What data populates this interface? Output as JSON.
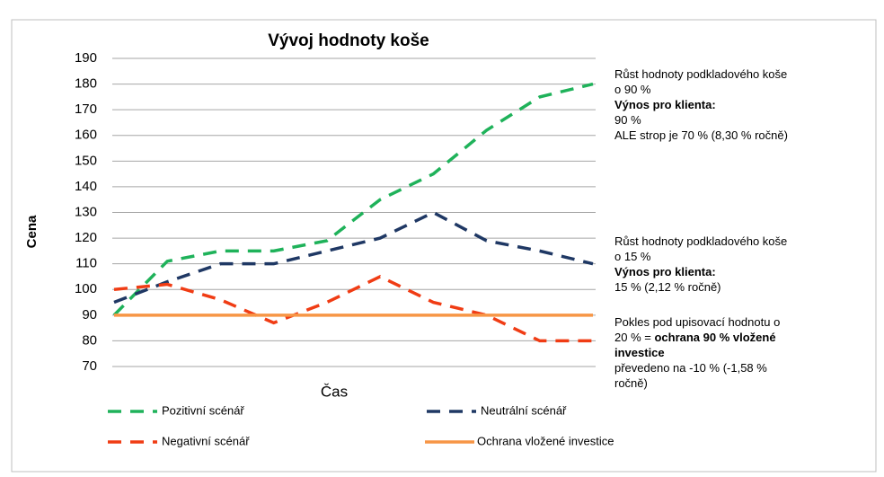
{
  "chart_data": {
    "type": "line",
    "title": "Vývoj hodnoty koše",
    "ylabel": "Cena",
    "xlabel": "Čas",
    "categories": [
      null,
      null,
      null,
      null,
      null,
      null,
      null,
      null,
      null,
      null
    ],
    "ylim": [
      70,
      190
    ],
    "yticks": [
      70,
      80,
      90,
      100,
      110,
      120,
      130,
      140,
      150,
      160,
      170,
      180,
      190
    ],
    "grid": true,
    "series": [
      {
        "name": "Pozitivní scénář",
        "color": "#1fb25a",
        "dashed": true,
        "values": [
          90,
          111,
          115,
          115,
          119,
          135,
          145,
          162,
          175,
          180
        ]
      },
      {
        "name": "Neutrální scénář",
        "color": "#1f3864",
        "dashed": true,
        "values": [
          95,
          103,
          110,
          110,
          115,
          120,
          130,
          119,
          115,
          110
        ]
      },
      {
        "name": "Negativní scénář",
        "color": "#f03c14",
        "dashed": true,
        "values": [
          100,
          102,
          96,
          87,
          95,
          105,
          95,
          90,
          80,
          80
        ]
      },
      {
        "name": "Ochrana vložené investice",
        "color": "#f79646",
        "dashed": false,
        "values": [
          90,
          90,
          90,
          90,
          90,
          90,
          90,
          90,
          90,
          90
        ]
      }
    ],
    "annotations": [
      [
        [
          {
            "text": "Růst hodnoty podkladového koše",
            "bold": false
          }
        ],
        [
          {
            "text": "o 90 %",
            "bold": false
          }
        ],
        [
          {
            "text": "Výnos pro klienta:",
            "bold": true
          }
        ],
        [
          {
            "text": "90 %",
            "bold": false
          }
        ],
        [
          {
            "text": "ALE strop je 70 % (8,30 % ročně)",
            "bold": false
          }
        ]
      ],
      [
        [
          {
            "text": "Růst hodnoty podkladového koše",
            "bold": false
          }
        ],
        [
          {
            "text": "o 15 %",
            "bold": false
          }
        ],
        [
          {
            "text": "Výnos pro klienta:",
            "bold": true
          }
        ],
        [
          {
            "text": "15 % (2,12 % ročně)",
            "bold": false
          }
        ]
      ],
      [
        [
          {
            "text": "Pokles pod upisovací hodnotu o",
            "bold": false
          }
        ],
        [
          {
            "text": "20 % = ",
            "bold": false
          },
          {
            "text": "ochrana 90 % vložené",
            "bold": true
          }
        ],
        [
          {
            "text": "investice",
            "bold": true
          }
        ],
        [
          {
            "text": "převedeno na -10 % (-1,58 %",
            "bold": false
          }
        ],
        [
          {
            "text": "ročně)",
            "bold": false
          }
        ]
      ]
    ]
  }
}
